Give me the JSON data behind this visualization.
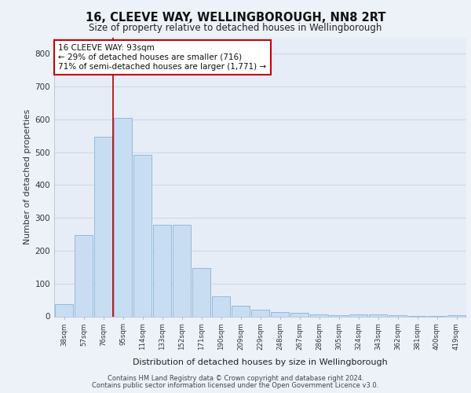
{
  "title1": "16, CLEEVE WAY, WELLINGBOROUGH, NN8 2RT",
  "title2": "Size of property relative to detached houses in Wellingborough",
  "xlabel": "Distribution of detached houses by size in Wellingborough",
  "ylabel": "Number of detached properties",
  "categories": [
    "38sqm",
    "57sqm",
    "76sqm",
    "95sqm",
    "114sqm",
    "133sqm",
    "152sqm",
    "171sqm",
    "190sqm",
    "209sqm",
    "229sqm",
    "248sqm",
    "267sqm",
    "286sqm",
    "305sqm",
    "324sqm",
    "343sqm",
    "362sqm",
    "381sqm",
    "400sqm",
    "419sqm"
  ],
  "values": [
    37,
    248,
    548,
    605,
    493,
    278,
    278,
    148,
    60,
    33,
    20,
    14,
    10,
    7,
    3,
    7,
    5,
    3,
    1,
    2,
    4
  ],
  "bar_color": "#c9ddf2",
  "bar_edge_color": "#85b4d8",
  "vline_color": "#aa0000",
  "vline_x_index": 3,
  "annotation_text": "16 CLEEVE WAY: 93sqm\n← 29% of detached houses are smaller (716)\n71% of semi-detached houses are larger (1,771) →",
  "annotation_box_facecolor": "#ffffff",
  "annotation_box_edgecolor": "#cc0000",
  "figure_facecolor": "#edf2f9",
  "axes_facecolor": "#e6edf7",
  "grid_color": "#d0d8e8",
  "spine_color": "#b0b8c8",
  "ylim": [
    0,
    850
  ],
  "yticks": [
    0,
    100,
    200,
    300,
    400,
    500,
    600,
    700,
    800
  ],
  "footer_line1": "Contains HM Land Registry data © Crown copyright and database right 2024.",
  "footer_line2": "Contains public sector information licensed under the Open Government Licence v3.0."
}
